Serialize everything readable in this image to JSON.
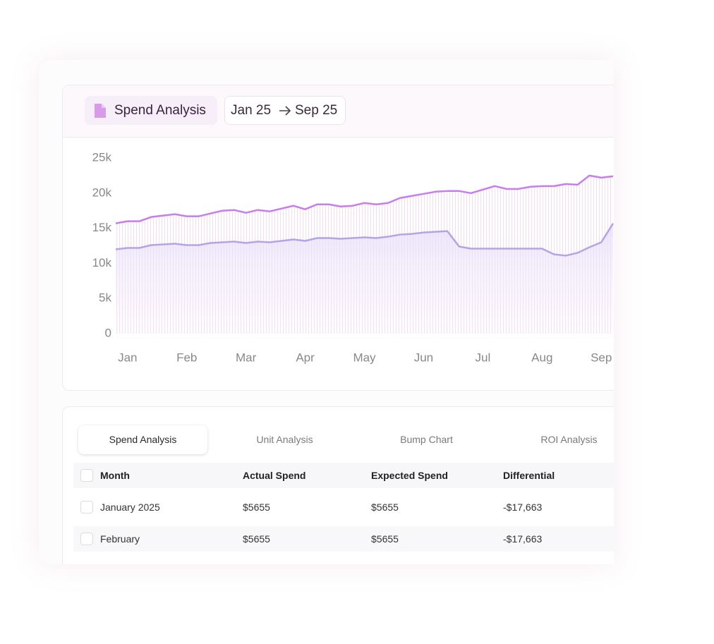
{
  "header": {
    "title": "Spend Analysis",
    "date_from": "Jan 25",
    "date_to": "Sep 25"
  },
  "chart_data": {
    "type": "line",
    "categories": [
      null,
      "Jan",
      null,
      null,
      null,
      null,
      "Feb",
      null,
      null,
      null,
      null,
      "Mar",
      null,
      null,
      null,
      null,
      "Apr",
      null,
      null,
      null,
      null,
      "May",
      null,
      null,
      null,
      null,
      "Jun",
      null,
      null,
      null,
      null,
      "Jul",
      null,
      null,
      null,
      null,
      "Aug",
      null,
      null,
      null,
      null,
      "Sep",
      null
    ],
    "series": [
      {
        "color": "#c77dea",
        "values": [
          15700,
          16000,
          16000,
          16600,
          16800,
          17000,
          16700,
          16700,
          17100,
          17500,
          17600,
          17200,
          17600,
          17400,
          17800,
          18200,
          17700,
          18400,
          18400,
          18100,
          18200,
          18600,
          18400,
          18600,
          19300,
          19600,
          19900,
          20200,
          20300,
          20300,
          20000,
          20500,
          21000,
          20600,
          20600,
          20900,
          21000,
          21000,
          21300,
          21200,
          22500,
          22200,
          22400
        ]
      },
      {
        "color": "#b3a4e6",
        "values": [
          12000,
          12200,
          12200,
          12600,
          12700,
          12800,
          12600,
          12600,
          12900,
          13000,
          13100,
          12900,
          13100,
          13000,
          13200,
          13400,
          13200,
          13600,
          13600,
          13500,
          13600,
          13700,
          13600,
          13800,
          14100,
          14200,
          14400,
          14500,
          14600,
          12400,
          12100,
          12100,
          12100,
          12100,
          12100,
          12100,
          12100,
          11300,
          11100,
          11500,
          12300,
          13000,
          15700
        ]
      }
    ],
    "ylim": [
      0,
      25000
    ],
    "yticks": [
      0,
      {
        "value": 5000,
        "label": "5k"
      },
      {
        "value": 10000,
        "label": "10k"
      },
      {
        "value": 15000,
        "label": "15k"
      },
      {
        "value": 20000,
        "label": "20k"
      },
      {
        "value": 25000,
        "label": "25k"
      }
    ],
    "grid": false
  },
  "tabs": [
    "Spend Analysis",
    "Unit Analysis",
    "Bump Chart",
    "ROI Analysis"
  ],
  "table": {
    "columns": [
      "Month",
      "Actual Spend",
      "Expected Spend",
      "Differential"
    ],
    "rows": [
      [
        "January 2025",
        "$5655",
        "$5655",
        "-$17,663"
      ],
      [
        "February",
        "$5655",
        "$5655",
        "-$17,663"
      ]
    ]
  }
}
